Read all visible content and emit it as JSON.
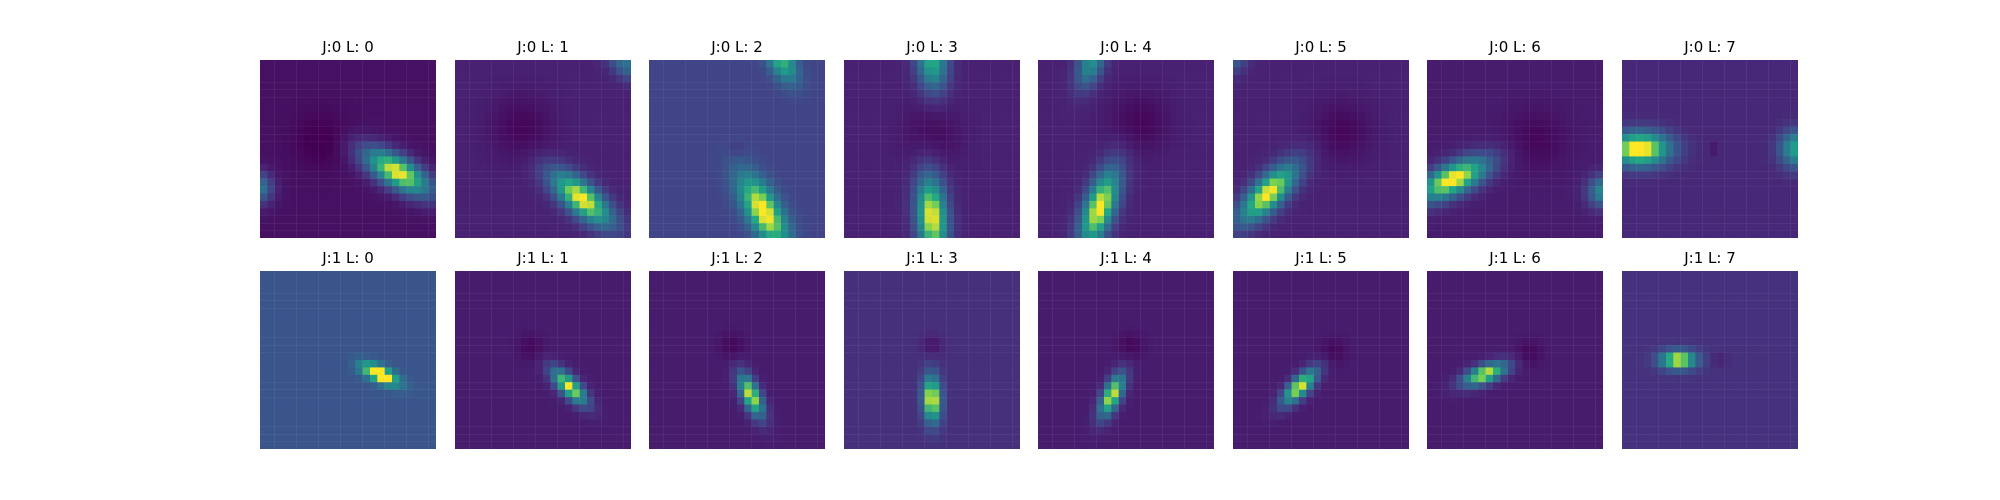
{
  "chart_data": {
    "type": "heatmap",
    "colormap": "viridis",
    "rows": 2,
    "cols": 8,
    "panels": [
      {
        "title": "J:0 L: 0",
        "J": 0,
        "L": 0,
        "background": 0.06,
        "blobs": [
          {
            "cx": 0.78,
            "cy": 0.63,
            "angle": -30,
            "sx": 0.15,
            "sy": 0.06,
            "amp": 0.95
          },
          {
            "cx": -0.02,
            "cy": 0.72,
            "angle": -30,
            "sx": 0.06,
            "sy": 0.06,
            "amp": 0.5
          },
          {
            "cx": 0.35,
            "cy": 0.45,
            "angle": 0,
            "sx": 0.11,
            "sy": 0.11,
            "amp": -0.08
          }
        ]
      },
      {
        "title": "J:0 L: 1",
        "J": 0,
        "L": 1,
        "background": 0.12,
        "blobs": [
          {
            "cx": 0.72,
            "cy": 0.78,
            "angle": -40,
            "sx": 0.15,
            "sy": 0.06,
            "amp": 0.9
          },
          {
            "cx": 0.97,
            "cy": 0.02,
            "angle": -40,
            "sx": 0.08,
            "sy": 0.05,
            "amp": 0.35
          },
          {
            "cx": 0.38,
            "cy": 0.38,
            "angle": 0,
            "sx": 0.13,
            "sy": 0.13,
            "amp": -0.1
          }
        ]
      },
      {
        "title": "J:0 L: 2",
        "J": 0,
        "L": 2,
        "background": 0.25,
        "blobs": [
          {
            "cx": 0.65,
            "cy": 0.85,
            "angle": -60,
            "sx": 0.16,
            "sy": 0.065,
            "amp": 0.8
          },
          {
            "cx": 0.75,
            "cy": 0.0,
            "angle": -60,
            "sx": 0.1,
            "sy": 0.05,
            "amp": 0.55
          },
          {
            "cx": 0.5,
            "cy": 0.5,
            "angle": 0,
            "sx": 0.015,
            "sy": 0.015,
            "amp": -0.3
          }
        ]
      },
      {
        "title": "J:0 L: 3",
        "J": 0,
        "L": 3,
        "background": 0.12,
        "blobs": [
          {
            "cx": 0.5,
            "cy": 0.88,
            "angle": -85,
            "sx": 0.16,
            "sy": 0.06,
            "amp": 0.9
          },
          {
            "cx": 0.5,
            "cy": 0.0,
            "angle": -85,
            "sx": 0.12,
            "sy": 0.06,
            "amp": 0.65
          },
          {
            "cx": 0.5,
            "cy": 0.42,
            "angle": 0,
            "sx": 0.12,
            "sy": 0.12,
            "amp": -0.08
          }
        ]
      },
      {
        "title": "J:0 L: 4",
        "J": 0,
        "L": 4,
        "background": 0.12,
        "blobs": [
          {
            "cx": 0.35,
            "cy": 0.83,
            "angle": -110,
            "sx": 0.16,
            "sy": 0.06,
            "amp": 0.9
          },
          {
            "cx": 0.3,
            "cy": 0.02,
            "angle": -110,
            "sx": 0.1,
            "sy": 0.05,
            "amp": 0.5
          },
          {
            "cx": 0.58,
            "cy": 0.35,
            "angle": 0,
            "sx": 0.12,
            "sy": 0.12,
            "amp": -0.1
          }
        ]
      },
      {
        "title": "J:0 L: 5",
        "J": 0,
        "L": 5,
        "background": 0.12,
        "blobs": [
          {
            "cx": 0.2,
            "cy": 0.75,
            "angle": -135,
            "sx": 0.15,
            "sy": 0.06,
            "amp": 0.9
          },
          {
            "cx": 0.0,
            "cy": 0.0,
            "angle": -135,
            "sx": 0.08,
            "sy": 0.05,
            "amp": 0.25
          },
          {
            "cx": 0.62,
            "cy": 0.4,
            "angle": 0,
            "sx": 0.12,
            "sy": 0.12,
            "amp": -0.1
          }
        ]
      },
      {
        "title": "J:0 L: 6",
        "J": 0,
        "L": 6,
        "background": 0.1,
        "blobs": [
          {
            "cx": 0.15,
            "cy": 0.67,
            "angle": -155,
            "sx": 0.15,
            "sy": 0.06,
            "amp": 0.95
          },
          {
            "cx": 1.0,
            "cy": 0.74,
            "angle": -155,
            "sx": 0.06,
            "sy": 0.06,
            "amp": 0.5
          },
          {
            "cx": 0.62,
            "cy": 0.45,
            "angle": 0,
            "sx": 0.12,
            "sy": 0.12,
            "amp": -0.08
          }
        ]
      },
      {
        "title": "J:0 L: 7",
        "J": 0,
        "L": 7,
        "background": 0.14,
        "blobs": [
          {
            "cx": 0.1,
            "cy": 0.5,
            "angle": 0,
            "sx": 0.12,
            "sy": 0.065,
            "amp": 0.95
          },
          {
            "cx": 1.0,
            "cy": 0.5,
            "angle": 0,
            "sx": 0.07,
            "sy": 0.07,
            "amp": 0.6
          },
          {
            "cx": 0.52,
            "cy": 0.5,
            "angle": 0,
            "sx": 0.015,
            "sy": 0.015,
            "amp": -0.12
          }
        ]
      },
      {
        "title": "J:1 L: 0",
        "J": 1,
        "L": 0,
        "background": 0.33,
        "blobs": [
          {
            "cx": 0.68,
            "cy": 0.58,
            "angle": -25,
            "sx": 0.08,
            "sy": 0.03,
            "amp": 0.85
          },
          {
            "cx": 0.5,
            "cy": 0.5,
            "angle": 0,
            "sx": 0.012,
            "sy": 0.012,
            "amp": -0.3
          }
        ]
      },
      {
        "title": "J:1 L: 1",
        "J": 1,
        "L": 1,
        "background": 0.1,
        "blobs": [
          {
            "cx": 0.65,
            "cy": 0.65,
            "angle": -45,
            "sx": 0.09,
            "sy": 0.035,
            "amp": 0.9
          },
          {
            "cx": 0.43,
            "cy": 0.43,
            "angle": 0,
            "sx": 0.05,
            "sy": 0.05,
            "amp": -0.08
          }
        ]
      },
      {
        "title": "J:1 L: 2",
        "J": 1,
        "L": 2,
        "background": 0.1,
        "blobs": [
          {
            "cx": 0.58,
            "cy": 0.7,
            "angle": -65,
            "sx": 0.09,
            "sy": 0.035,
            "amp": 0.9
          },
          {
            "cx": 0.47,
            "cy": 0.42,
            "angle": 0,
            "sx": 0.05,
            "sy": 0.05,
            "amp": -0.08
          }
        ]
      },
      {
        "title": "J:1 L: 3",
        "J": 1,
        "L": 3,
        "background": 0.17,
        "blobs": [
          {
            "cx": 0.5,
            "cy": 0.72,
            "angle": -88,
            "sx": 0.09,
            "sy": 0.035,
            "amp": 0.9
          },
          {
            "cx": 0.5,
            "cy": 0.42,
            "angle": 0,
            "sx": 0.04,
            "sy": 0.04,
            "amp": -0.1
          }
        ]
      },
      {
        "title": "J:1 L: 4",
        "J": 1,
        "L": 4,
        "background": 0.1,
        "blobs": [
          {
            "cx": 0.42,
            "cy": 0.7,
            "angle": -115,
            "sx": 0.09,
            "sy": 0.035,
            "amp": 0.9
          },
          {
            "cx": 0.53,
            "cy": 0.42,
            "angle": 0,
            "sx": 0.05,
            "sy": 0.05,
            "amp": -0.08
          }
        ]
      },
      {
        "title": "J:1 L: 5",
        "J": 1,
        "L": 5,
        "background": 0.1,
        "blobs": [
          {
            "cx": 0.38,
            "cy": 0.65,
            "angle": -135,
            "sx": 0.09,
            "sy": 0.035,
            "amp": 0.9
          },
          {
            "cx": 0.57,
            "cy": 0.45,
            "angle": 0,
            "sx": 0.05,
            "sy": 0.05,
            "amp": -0.08
          }
        ]
      },
      {
        "title": "J:1 L: 6",
        "J": 1,
        "L": 6,
        "background": 0.1,
        "blobs": [
          {
            "cx": 0.33,
            "cy": 0.58,
            "angle": -160,
            "sx": 0.09,
            "sy": 0.035,
            "amp": 0.9
          },
          {
            "cx": 0.58,
            "cy": 0.46,
            "angle": 0,
            "sx": 0.05,
            "sy": 0.05,
            "amp": -0.08
          }
        ]
      },
      {
        "title": "J:1 L: 7",
        "J": 1,
        "L": 7,
        "background": 0.18,
        "blobs": [
          {
            "cx": 0.32,
            "cy": 0.5,
            "angle": 0,
            "sx": 0.07,
            "sy": 0.035,
            "amp": 0.88
          },
          {
            "cx": 0.55,
            "cy": 0.5,
            "angle": 0,
            "sx": 0.04,
            "sy": 0.02,
            "amp": -0.08
          }
        ]
      }
    ]
  }
}
